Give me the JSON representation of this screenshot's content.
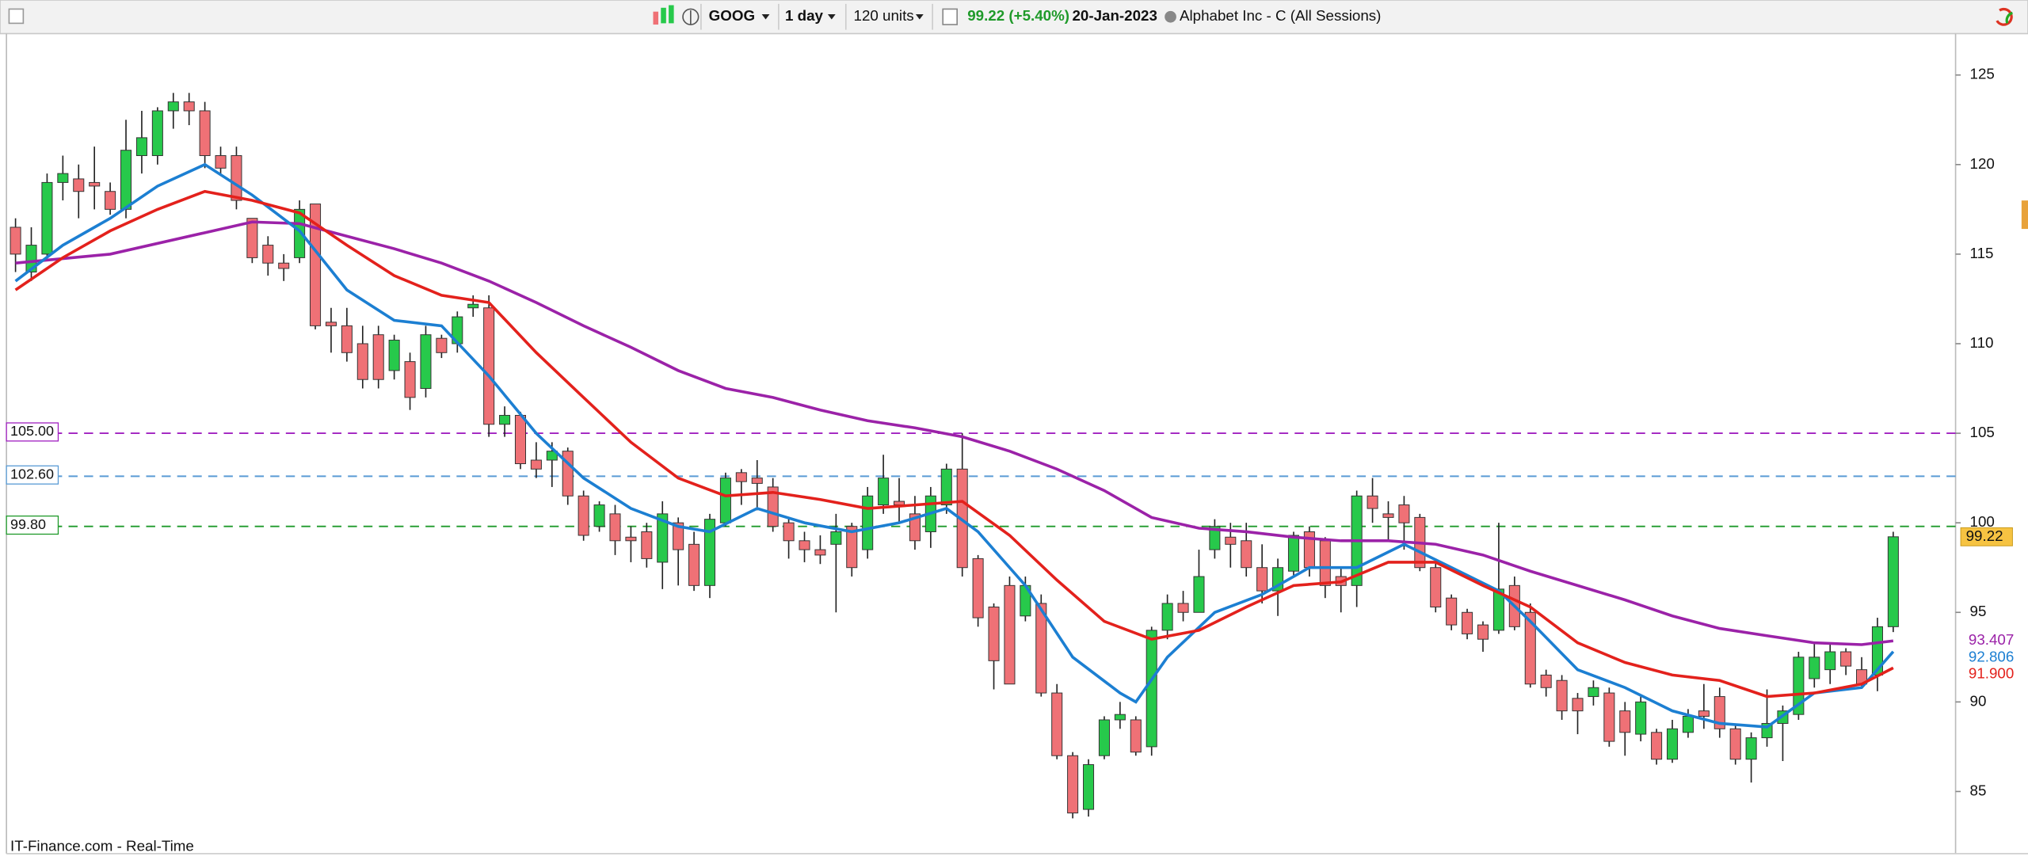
{
  "toolbar": {
    "symbol": "GOOG",
    "interval": "1 day",
    "units": "120 units",
    "quote": "99.22 (+5.40%)",
    "date": "20-Jan-2023",
    "description": "Alphabet Inc - C (All Sessions)"
  },
  "footer": "IT-Finance.com - Real-Time",
  "chart_data": {
    "type": "candlestick",
    "up_color": "#27c94b",
    "down_color": "#ef7176",
    "open": [
      116.5,
      114,
      115,
      119,
      119.2,
      119,
      118.5,
      117.5,
      120.5,
      120.5,
      123,
      123.5,
      123,
      120.5,
      120.5,
      117,
      115.5,
      114.5,
      114.8,
      117.8,
      111.2,
      111,
      110,
      110.5,
      108.5,
      109,
      107.5,
      110.3,
      110,
      112,
      112,
      105.5,
      106,
      103.5,
      103.5,
      104,
      101.5,
      99.8,
      100.5,
      99.2,
      99.5,
      97.8,
      100,
      98.8,
      96.5,
      100,
      102.8,
      102.5,
      102,
      100,
      99,
      98.5,
      98.8,
      99.8,
      98.5,
      101,
      101.2,
      100.5,
      99.5,
      101,
      103,
      98,
      95.3,
      96.5,
      94.8,
      95.5,
      90.5,
      87,
      84,
      87,
      89,
      89,
      87.5,
      94,
      95.5,
      95,
      98.5,
      99.2,
      99,
      97.5,
      96.2,
      97.3,
      99.5,
      99,
      97,
      96.5,
      101.5,
      100.5,
      101,
      100.3,
      97.5,
      95.8,
      95,
      94.3,
      94,
      96.5,
      95,
      91.5,
      91.2,
      90.2,
      90.3,
      90.5,
      89.5,
      88.2,
      88.3,
      86.8,
      88.3,
      89.5,
      90.3,
      88.5,
      86.8,
      88,
      88.8,
      89.3,
      91.3,
      91.8,
      92.8,
      91.8,
      91.5,
      94.2
    ],
    "high": [
      117,
      116.5,
      119.5,
      120.5,
      120,
      121,
      119,
      122.5,
      123,
      123.2,
      124,
      124,
      123.5,
      121,
      121,
      117,
      116,
      115,
      118,
      117.8,
      112,
      112,
      111,
      111,
      110.5,
      109.5,
      111,
      110.5,
      111.8,
      112.7,
      112.7,
      106.5,
      106.2,
      104.5,
      104.5,
      104.2,
      101.8,
      101.2,
      101,
      99.8,
      100,
      101.2,
      100.3,
      99.5,
      100.5,
      102.8,
      103,
      103.5,
      102.5,
      100.3,
      99.5,
      99.3,
      100.5,
      100,
      102,
      103.8,
      102.5,
      101.5,
      102,
      103.3,
      105,
      98.2,
      95.5,
      97,
      97,
      96,
      91,
      87.2,
      86.8,
      89.2,
      90,
      89.2,
      94.2,
      96,
      96.2,
      98.5,
      100.2,
      100,
      100,
      98.8,
      98,
      99.5,
      99.8,
      99.2,
      97.5,
      101.8,
      102.5,
      101.2,
      101.5,
      100.5,
      98,
      96,
      95.2,
      94.5,
      100,
      97,
      95.5,
      91.8,
      91.5,
      90.5,
      91.2,
      90.8,
      90,
      90.3,
      88.5,
      89,
      89.6,
      91,
      90.8,
      88.8,
      88.3,
      90.7,
      89.8,
      92.8,
      93.3,
      93.2,
      93,
      92.5,
      94.7,
      99.5
    ],
    "low": [
      114,
      113.5,
      114.8,
      118,
      117,
      117.5,
      117.2,
      117,
      119.5,
      120,
      122,
      122.2,
      119.8,
      119.5,
      117.5,
      114.5,
      113.8,
      113.5,
      114.5,
      110.8,
      109.5,
      109,
      107.5,
      107.5,
      108,
      106.3,
      107,
      109.2,
      109.5,
      111.5,
      104.8,
      104.8,
      103,
      102.5,
      102,
      101,
      99,
      99.5,
      98.2,
      97.8,
      97.5,
      96.3,
      96.5,
      96.2,
      95.8,
      99.8,
      101,
      100.7,
      99.5,
      98,
      97.8,
      97.7,
      95,
      97,
      98,
      100.5,
      100,
      98.5,
      98.6,
      100.5,
      97,
      94.2,
      90.7,
      91,
      94.5,
      90.3,
      86.8,
      83.5,
      83.6,
      86.8,
      88.5,
      87,
      87,
      93.5,
      94.5,
      95,
      98,
      97.5,
      97,
      95.5,
      94.8,
      97,
      97,
      95.8,
      95,
      95.3,
      100,
      99,
      98.5,
      97.3,
      95,
      94,
      93.5,
      92.8,
      93.8,
      94,
      90.8,
      90.3,
      89,
      88.2,
      89.8,
      87.5,
      87,
      87.8,
      86.5,
      86.6,
      88,
      88.5,
      88,
      86.5,
      85.5,
      87.5,
      86.7,
      89,
      90.8,
      91,
      91.5,
      90.8,
      90.6,
      93.9
    ],
    "close": [
      115,
      115.5,
      119,
      119.5,
      118.5,
      118.8,
      117.5,
      120.8,
      121.5,
      123,
      123.5,
      123,
      120.5,
      119.8,
      118,
      114.8,
      114.5,
      114.2,
      117.5,
      111,
      111,
      109.5,
      108,
      108,
      110.2,
      107,
      110.5,
      109.5,
      111.5,
      112.2,
      105.5,
      106,
      103.3,
      103,
      104,
      101.5,
      99.3,
      101,
      99,
      99,
      98,
      100.5,
      98.5,
      96.5,
      100.2,
      102.5,
      102.3,
      102.2,
      99.8,
      99,
      98.5,
      98.2,
      99.5,
      97.5,
      101.5,
      102.5,
      101,
      99,
      101.5,
      103,
      97.5,
      94.7,
      92.3,
      91,
      96.5,
      90.5,
      87,
      83.8,
      86.5,
      89,
      89.3,
      87.2,
      94,
      95.5,
      95,
      97,
      99.8,
      98.8,
      97.5,
      96.2,
      97.5,
      99.3,
      97.5,
      96.5,
      96.5,
      101.5,
      100.8,
      100.3,
      100,
      97.5,
      95.3,
      94.3,
      93.8,
      93.5,
      96.3,
      94.2,
      91,
      90.8,
      89.5,
      89.5,
      90.8,
      87.8,
      88.3,
      90,
      86.8,
      88.5,
      89.2,
      89.2,
      88.5,
      86.8,
      88,
      88.8,
      89.5,
      92.5,
      92.5,
      92.8,
      92,
      91,
      94.2,
      99.22
    ],
    "series": [
      {
        "color": "#9b22a8",
        "end_label": "93.407",
        "x": [
          0,
          6,
          12,
          15,
          18,
          21,
          24,
          27,
          30,
          33,
          36,
          39,
          42,
          45,
          48,
          51,
          54,
          57,
          60,
          63,
          66,
          69,
          72,
          75,
          78,
          81,
          84,
          87,
          90,
          93,
          96,
          99,
          102,
          105,
          108,
          111,
          114,
          117,
          119
        ],
        "values": [
          114.5,
          115,
          116.2,
          116.8,
          116.7,
          116,
          115.3,
          114.5,
          113.5,
          112.3,
          111,
          109.8,
          108.5,
          107.5,
          107,
          106.3,
          105.7,
          105.3,
          104.8,
          104,
          103,
          101.8,
          100.3,
          99.7,
          99.5,
          99.2,
          99,
          99,
          98.8,
          98.2,
          97.3,
          96.5,
          95.7,
          94.8,
          94.1,
          93.7,
          93.3,
          93.2,
          93.407
        ]
      },
      {
        "color": "#1c7fd2",
        "end_label": "92.806",
        "x": [
          0,
          3,
          6,
          9,
          12,
          15,
          18,
          21,
          24,
          27,
          30,
          33,
          36,
          39,
          42,
          44,
          47,
          50,
          53,
          56,
          59,
          61,
          64,
          67,
          70,
          71,
          73,
          76,
          79,
          82,
          85,
          88,
          91,
          94,
          96,
          99,
          102,
          105,
          108,
          111,
          114,
          117,
          119
        ],
        "values": [
          113.5,
          115.5,
          117,
          118.8,
          120,
          118.3,
          116.3,
          113,
          111.3,
          111,
          108.2,
          105,
          102.5,
          100.8,
          99.8,
          99.5,
          100.8,
          100,
          99.5,
          100,
          100.8,
          99.5,
          96.5,
          92.5,
          90.5,
          90,
          92.5,
          95,
          96,
          97.5,
          97.5,
          98.8,
          97.5,
          96.2,
          94.5,
          91.8,
          90.8,
          89.5,
          88.8,
          88.6,
          90.5,
          90.8,
          92.806
        ]
      },
      {
        "color": "#e3211c",
        "end_label": "91.900",
        "x": [
          0,
          3,
          6,
          9,
          12,
          15,
          18,
          21,
          24,
          27,
          30,
          33,
          36,
          39,
          42,
          45,
          48,
          51,
          54,
          57,
          60,
          63,
          66,
          69,
          72,
          75,
          78,
          81,
          84,
          87,
          90,
          93,
          96,
          99,
          102,
          105,
          108,
          111,
          114,
          117,
          119
        ],
        "values": [
          113,
          114.8,
          116.3,
          117.5,
          118.5,
          118,
          117.3,
          115.5,
          113.8,
          112.7,
          112.3,
          109.5,
          107,
          104.5,
          102.5,
          101.5,
          101.7,
          101.3,
          100.8,
          101,
          101.2,
          99.3,
          96.8,
          94.5,
          93.5,
          94,
          95.3,
          96.5,
          96.7,
          97.8,
          97.8,
          96.5,
          95.3,
          93.3,
          92.2,
          91.5,
          91.2,
          90.3,
          90.5,
          91,
          91.9
        ]
      }
    ],
    "hlines": [
      {
        "value": 105,
        "label": "105.00",
        "color": "#a020c0"
      },
      {
        "value": 102.6,
        "label": "102.60",
        "color": "#5a9bd5"
      },
      {
        "value": 99.8,
        "label": "99.80",
        "color": "#1f9a2a"
      }
    ],
    "ylim": [
      81.53,
      127.31
    ],
    "yticks": [
      85,
      90,
      95,
      100,
      105,
      110,
      115,
      120,
      125
    ]
  }
}
